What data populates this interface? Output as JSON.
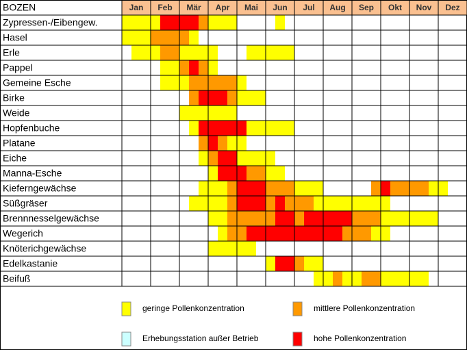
{
  "table": {
    "corner": "BOZEN",
    "months": [
      "Jan",
      "Feb",
      "Mär",
      "Apr",
      "Mai",
      "Jun",
      "Jul",
      "Aug",
      "Sep",
      "Okt",
      "Nov",
      "Dez"
    ],
    "level_colors": {
      "1": "#ffff00",
      "2": "#ff9900",
      "3": "#ff0000"
    },
    "rows": [
      {
        "name": "Zypressen-/Eibengew.",
        "levels": [
          1,
          1,
          1,
          1,
          3,
          3,
          3,
          3,
          2,
          1,
          1,
          1,
          0,
          0,
          0,
          0,
          1,
          0,
          0,
          0,
          0,
          0,
          0,
          0,
          0,
          0,
          0,
          0,
          0,
          0,
          0,
          0,
          0,
          0,
          0,
          0
        ]
      },
      {
        "name": "Hasel",
        "levels": [
          1,
          1,
          1,
          2,
          2,
          2,
          2,
          1,
          0,
          0,
          0,
          0,
          0,
          0,
          0,
          0,
          0,
          0,
          0,
          0,
          0,
          0,
          0,
          0,
          0,
          0,
          0,
          0,
          0,
          0,
          0,
          0,
          0,
          0,
          0,
          0
        ]
      },
      {
        "name": "Erle",
        "levels": [
          0,
          1,
          1,
          1,
          2,
          2,
          1,
          1,
          1,
          1,
          0,
          0,
          0,
          1,
          1,
          1,
          1,
          1,
          0,
          0,
          0,
          0,
          0,
          0,
          0,
          0,
          0,
          0,
          0,
          0,
          0,
          0,
          0,
          0,
          0,
          0
        ]
      },
      {
        "name": "Pappel",
        "levels": [
          0,
          0,
          0,
          0,
          1,
          1,
          2,
          3,
          2,
          1,
          0,
          0,
          0,
          0,
          0,
          0,
          0,
          0,
          0,
          0,
          0,
          0,
          0,
          0,
          0,
          0,
          0,
          0,
          0,
          0,
          0,
          0,
          0,
          0,
          0,
          0
        ]
      },
      {
        "name": "Gemeine Esche",
        "levels": [
          0,
          0,
          0,
          0,
          1,
          1,
          1,
          2,
          2,
          2,
          2,
          2,
          1,
          0,
          0,
          0,
          0,
          0,
          0,
          0,
          0,
          0,
          0,
          0,
          0,
          0,
          0,
          0,
          0,
          0,
          0,
          0,
          0,
          0,
          0,
          0
        ]
      },
      {
        "name": "Birke",
        "levels": [
          0,
          0,
          0,
          0,
          0,
          0,
          0,
          2,
          3,
          3,
          3,
          2,
          1,
          1,
          1,
          0,
          0,
          0,
          0,
          0,
          0,
          0,
          0,
          0,
          0,
          0,
          0,
          0,
          0,
          0,
          0,
          0,
          0,
          0,
          0,
          0
        ]
      },
      {
        "name": "Weide",
        "levels": [
          0,
          0,
          0,
          0,
          0,
          0,
          1,
          1,
          1,
          1,
          1,
          1,
          0,
          0,
          0,
          0,
          0,
          0,
          0,
          0,
          0,
          0,
          0,
          0,
          0,
          0,
          0,
          0,
          0,
          0,
          0,
          0,
          0,
          0,
          0,
          0
        ]
      },
      {
        "name": "Hopfenbuche",
        "levels": [
          0,
          0,
          0,
          0,
          0,
          0,
          0,
          1,
          3,
          3,
          3,
          3,
          3,
          1,
          1,
          1,
          1,
          1,
          0,
          0,
          0,
          0,
          0,
          0,
          0,
          0,
          0,
          0,
          0,
          0,
          0,
          0,
          0,
          0,
          0,
          0
        ]
      },
      {
        "name": "Platane",
        "levels": [
          0,
          0,
          0,
          0,
          0,
          0,
          0,
          0,
          2,
          3,
          2,
          1,
          1,
          0,
          0,
          0,
          0,
          0,
          0,
          0,
          0,
          0,
          0,
          0,
          0,
          0,
          0,
          0,
          0,
          0,
          0,
          0,
          0,
          0,
          0,
          0
        ]
      },
      {
        "name": "Eiche",
        "levels": [
          0,
          0,
          0,
          0,
          0,
          0,
          0,
          0,
          1,
          2,
          3,
          3,
          1,
          1,
          1,
          1,
          0,
          0,
          0,
          0,
          0,
          0,
          0,
          0,
          0,
          0,
          0,
          0,
          0,
          0,
          0,
          0,
          0,
          0,
          0,
          0
        ]
      },
      {
        "name": "Manna-Esche",
        "levels": [
          0,
          0,
          0,
          0,
          0,
          0,
          0,
          0,
          0,
          1,
          3,
          3,
          3,
          2,
          2,
          1,
          1,
          0,
          0,
          0,
          0,
          0,
          0,
          0,
          0,
          0,
          0,
          0,
          0,
          0,
          0,
          0,
          0,
          0,
          0,
          0
        ]
      },
      {
        "name": "Kieferngewächse",
        "levels": [
          0,
          0,
          0,
          0,
          0,
          0,
          0,
          0,
          1,
          1,
          1,
          2,
          3,
          3,
          3,
          2,
          2,
          2,
          1,
          1,
          1,
          0,
          0,
          0,
          0,
          0,
          2,
          3,
          2,
          2,
          2,
          2,
          1,
          1,
          0,
          0
        ]
      },
      {
        "name": "Süßgräser",
        "levels": [
          0,
          0,
          0,
          0,
          0,
          0,
          0,
          1,
          1,
          1,
          1,
          2,
          3,
          3,
          3,
          2,
          3,
          2,
          2,
          2,
          1,
          1,
          1,
          1,
          1,
          1,
          1,
          1,
          0,
          0,
          0,
          0,
          0,
          0,
          0,
          0
        ]
      },
      {
        "name": "Brennnesselgewächse",
        "levels": [
          0,
          0,
          0,
          0,
          0,
          0,
          0,
          0,
          0,
          1,
          1,
          2,
          2,
          2,
          2,
          2,
          3,
          3,
          2,
          3,
          3,
          3,
          3,
          3,
          2,
          2,
          2,
          1,
          1,
          1,
          1,
          1,
          1,
          0,
          0,
          0
        ]
      },
      {
        "name": "Wegerich",
        "levels": [
          0,
          0,
          0,
          0,
          0,
          0,
          0,
          0,
          0,
          0,
          1,
          2,
          2,
          3,
          3,
          3,
          3,
          3,
          3,
          3,
          3,
          3,
          3,
          2,
          2,
          2,
          1,
          1,
          0,
          0,
          0,
          0,
          0,
          0,
          0,
          0
        ]
      },
      {
        "name": "Knöterichgewächse",
        "levels": [
          0,
          0,
          0,
          0,
          0,
          0,
          0,
          0,
          0,
          1,
          1,
          1,
          1,
          1,
          0,
          0,
          0,
          0,
          0,
          0,
          0,
          0,
          0,
          0,
          0,
          0,
          0,
          0,
          0,
          0,
          0,
          0,
          0,
          0,
          0,
          0
        ]
      },
      {
        "name": "Edelkastanie",
        "levels": [
          0,
          0,
          0,
          0,
          0,
          0,
          0,
          0,
          0,
          0,
          0,
          0,
          0,
          0,
          0,
          1,
          3,
          3,
          2,
          1,
          1,
          0,
          0,
          0,
          0,
          0,
          0,
          0,
          0,
          0,
          0,
          0,
          0,
          0,
          0,
          0
        ]
      },
      {
        "name": "Beifuß",
        "levels": [
          0,
          0,
          0,
          0,
          0,
          0,
          0,
          0,
          0,
          0,
          0,
          0,
          0,
          0,
          0,
          0,
          0,
          0,
          0,
          0,
          1,
          1,
          2,
          1,
          1,
          2,
          2,
          1,
          1,
          1,
          1,
          1,
          0,
          0,
          0,
          0
        ]
      }
    ],
    "legend": [
      {
        "label": "geringe Pollenkonzentration",
        "color": "#ffff00"
      },
      {
        "label": "mittlere Pollenkonzentration",
        "color": "#ff9900"
      },
      {
        "label": "Erhebungsstation außer Betrieb",
        "color": "#ccffff"
      },
      {
        "label": "hohe Pollenkonzentration",
        "color": "#ff0000"
      }
    ]
  }
}
